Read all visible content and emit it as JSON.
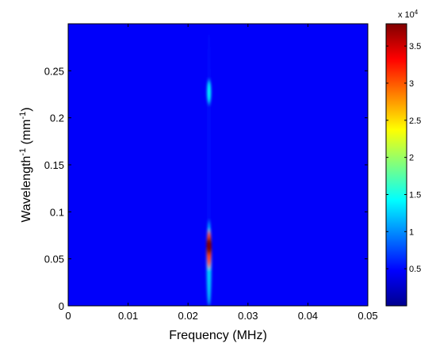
{
  "chart_data": {
    "type": "heatmap",
    "xlabel": "Frequency (MHz)",
    "ylabel": "Wavelength",
    "ylabel_superscript": "-1",
    "ylabel_unit_prefix": " (mm",
    "ylabel_unit_superscript": "-1",
    "ylabel_unit_suffix": ")",
    "xlim": [
      0,
      0.05
    ],
    "ylim": [
      0,
      0.3
    ],
    "xticks": [
      0,
      0.01,
      0.02,
      0.03,
      0.04,
      0.05
    ],
    "xtick_labels": [
      "0",
      "0.01",
      "0.02",
      "0.03",
      "0.04",
      "0.05"
    ],
    "yticks": [
      0,
      0.05,
      0.1,
      0.15,
      0.2,
      0.25
    ],
    "ytick_labels": [
      "0",
      "0.05",
      "0.1",
      "0.15",
      "0.2",
      "0.25"
    ],
    "colorbar": {
      "range": [
        0,
        38000
      ],
      "ticks": [
        5000,
        10000,
        15000,
        20000,
        25000,
        30000,
        35000
      ],
      "tick_labels": [
        "0.5",
        "1",
        "1.5",
        "2",
        "2.5",
        "3",
        "3.5"
      ],
      "multiplier_base": "x 10",
      "multiplier_exp": "4",
      "colormap": "jet"
    },
    "background_value": 0,
    "features": [
      {
        "x": 0.0235,
        "y_from": 0.0,
        "y_to": 0.3,
        "value": 1500
      },
      {
        "x": 0.0235,
        "y_from": 0.0,
        "y_to": 0.09,
        "value": 9000
      },
      {
        "x": 0.0235,
        "y_from": 0.04,
        "y_to": 0.08,
        "value": 30000
      },
      {
        "x": 0.0235,
        "y_from": 0.055,
        "y_to": 0.072,
        "value": 38000
      },
      {
        "x": 0.0235,
        "y_from": 0.215,
        "y_to": 0.24,
        "value": 11000
      }
    ]
  }
}
